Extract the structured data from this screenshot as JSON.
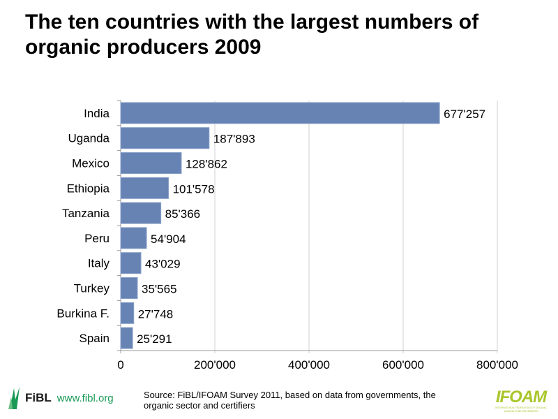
{
  "chart_data": {
    "type": "bar",
    "orientation": "horizontal",
    "title": "The ten countries with the largest numbers of organic producers 2009",
    "categories": [
      "India",
      "Uganda",
      "Mexico",
      "Ethiopia",
      "Tanzania",
      "Peru",
      "Italy",
      "Turkey",
      "Burkina F.",
      "Spain"
    ],
    "values": [
      677257,
      187893,
      128862,
      101578,
      85366,
      54904,
      43029,
      35565,
      27748,
      25291
    ],
    "value_labels": [
      "677'257",
      "187'893",
      "128'862",
      "101'578",
      "85'366",
      "54'904",
      "43'029",
      "35'565",
      "27'748",
      "25'291"
    ],
    "xlim": [
      0,
      800000
    ],
    "xticks": [
      0,
      200000,
      400000,
      600000,
      800000
    ],
    "xtick_labels": [
      "0",
      "200'000",
      "400'000",
      "600'000",
      "800'000"
    ],
    "xlabel": "",
    "ylabel": "",
    "grid": true,
    "bar_color": "#6683b4"
  },
  "footer": {
    "source": "Source: FiBL/IFOAM Survey 2011, based on data from governments,  the organic sector and certifiers",
    "fibl_name": "FiBL",
    "fibl_url": "www.fibl.org",
    "ifoam_logo": "IFOAM",
    "ifoam_sub": "INTERNATIONAL FEDERATION OF ORGANIC AGRICULTURE MOVEMENTS"
  }
}
